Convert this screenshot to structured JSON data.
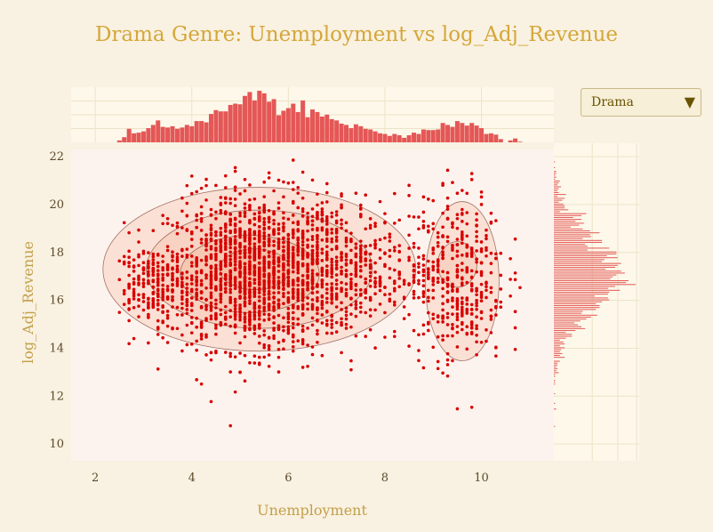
{
  "chart_data": {
    "type": "scatter",
    "title": "Drama Genre: Unemployment vs log_Adj_Revenue",
    "xlabel": "Unemployment",
    "ylabel": "log_Adj_Revenue",
    "xlim": [
      1.5,
      11.5
    ],
    "ylim": [
      9.3,
      22.3
    ],
    "x_ticks": [
      2,
      4,
      6,
      8,
      10
    ],
    "y_ticks": [
      10,
      12,
      14,
      16,
      18,
      20,
      22
    ],
    "grid": true,
    "marginals": "histograms (top: Unemployment, right: log_Adj_Revenue)",
    "density_contours": true,
    "clusters": [
      {
        "cx": 5.3,
        "cy": 17.2,
        "sx": 0.9,
        "sy": 1.6,
        "weight": 0.55
      },
      {
        "cx": 7.0,
        "cy": 17.3,
        "sx": 0.9,
        "sy": 1.5,
        "weight": 0.2
      },
      {
        "cx": 3.2,
        "cy": 16.6,
        "sx": 0.5,
        "sy": 0.8,
        "weight": 0.1
      },
      {
        "cx": 9.5,
        "cy": 17.0,
        "sx": 0.5,
        "sy": 1.8,
        "weight": 0.15
      }
    ],
    "contours": [
      {
        "cx": 5.4,
        "cy": 17.3,
        "rx": 3.6,
        "ry": 3.6
      },
      {
        "cx": 5.4,
        "cy": 17.3,
        "rx": 2.6,
        "ry": 2.6
      },
      {
        "cx": 5.2,
        "cy": 17.1,
        "rx": 1.6,
        "ry": 1.7
      },
      {
        "cx": 5.3,
        "cy": 17.3,
        "rx": 0.8,
        "ry": 0.9
      },
      {
        "cx": 9.6,
        "cy": 16.8,
        "rx": 0.85,
        "ry": 3.5
      },
      {
        "cx": 9.5,
        "cy": 17.5,
        "rx": 0.45,
        "ry": 1.0
      }
    ]
  },
  "colors": {
    "points": "#d70000",
    "histogram": "#e45756",
    "plot_bg": "#fdf3ee",
    "marginal_bg": "#fdf8ea",
    "title": "#d4a73a",
    "contour_fill": "#f0a080",
    "contour_line": "#7a4030"
  },
  "dropdown": {
    "selected": "Drama",
    "arrow_icon": "triangle-down-icon"
  }
}
